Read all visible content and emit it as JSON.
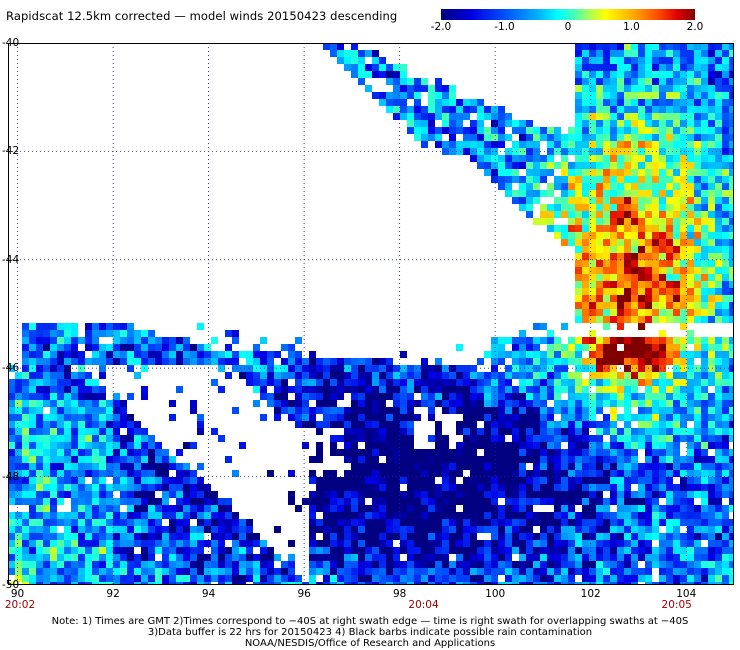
{
  "title": "Rapidscat 12.5km corrected — model winds 20150423 descending",
  "colorbar": {
    "ticks": [
      {
        "label": "-2.0",
        "value": -2.0
      },
      {
        "label": "-1.0",
        "value": -1.0
      },
      {
        "label": "0",
        "value": 0
      },
      {
        "label": "1.0",
        "value": 1.0
      },
      {
        "label": "2.0",
        "value": 2.0
      }
    ]
  },
  "axes": {
    "lat_labels": [
      "-40",
      "-42",
      "-44",
      "-46",
      "-48",
      "-50"
    ],
    "lat_values": [
      -40,
      -42,
      -44,
      -46,
      -48,
      -50
    ],
    "lon_labels": [
      "90",
      "92",
      "94",
      "96",
      "98",
      "100",
      "102",
      "104"
    ],
    "lon_values": [
      90,
      92,
      94,
      96,
      98,
      100,
      102,
      104
    ],
    "lon_range": [
      89.8,
      105
    ],
    "lat_range": [
      -40,
      -50
    ]
  },
  "times": [
    {
      "label": "20:02",
      "lon": 90
    },
    {
      "label": "20:04",
      "lon": 98.5
    },
    {
      "label": "20:05",
      "lon": 103.8
    }
  ],
  "notes": [
    "Note: 1) Times are GMT 2)Times correspond to −40S at right swath edge — time is right swath for overlapping swaths at −40S",
    "3)Data buffer is 22 hrs for 20150423 4) Black barbs indicate possible rain contamination",
    "NOAA/NESDIS/Office of Research and Applications"
  ]
}
